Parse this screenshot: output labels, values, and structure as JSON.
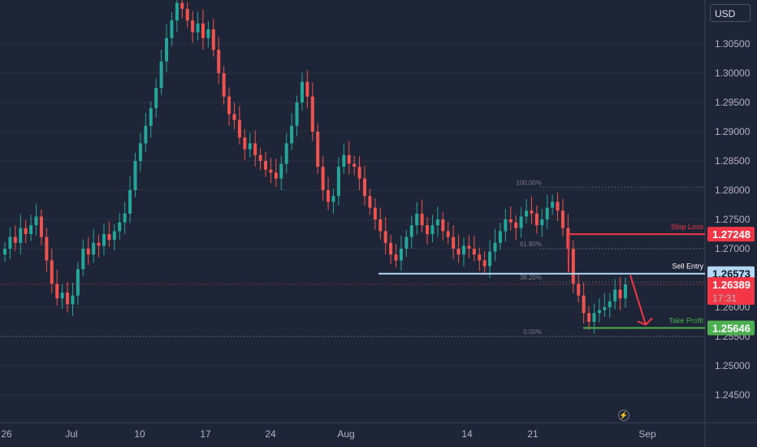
{
  "instrument": {
    "currency": "USD"
  },
  "colors": {
    "up": "#26a69a",
    "down": "#ef5350",
    "background": "#1e2536",
    "stop_loss": "#f23645",
    "sell_entry": "#b2d8f5",
    "take_profit": "#4caf50",
    "current_price": "#f23645",
    "fib": "#787b86",
    "arrow": "#f23645"
  },
  "chart_data": {
    "type": "candlestick",
    "title": "",
    "x_ticks": [
      "26",
      "Jul",
      "10",
      "17",
      "24",
      "Aug",
      "14",
      "21",
      "Sep"
    ],
    "y_ticks": [
      "1.30500",
      "1.30000",
      "1.29500",
      "1.29000",
      "1.28500",
      "1.28000",
      "1.27500",
      "1.27000",
      "1.26000",
      "1.25500",
      "1.25000",
      "1.24500"
    ],
    "ylim": [
      1.241,
      1.3105
    ],
    "grid": true,
    "close_series": [
      1.27,
      1.272,
      1.271,
      1.2735,
      1.2725,
      1.274,
      1.2755,
      1.272,
      1.268,
      1.264,
      1.2615,
      1.2625,
      1.2605,
      1.262,
      1.2665,
      1.27,
      1.269,
      1.271,
      1.2705,
      1.2725,
      1.2715,
      1.273,
      1.2745,
      1.276,
      1.28,
      1.285,
      1.288,
      1.291,
      1.294,
      1.2975,
      1.302,
      1.306,
      1.309,
      1.312,
      1.311,
      1.309,
      1.307,
      1.3085,
      1.306,
      1.3075,
      1.304,
      1.3,
      1.296,
      1.293,
      1.292,
      1.289,
      1.287,
      1.288,
      1.286,
      1.285,
      1.2835,
      1.283,
      1.282,
      1.2845,
      1.288,
      1.291,
      1.295,
      1.2985,
      1.296,
      1.29,
      1.284,
      1.28,
      1.278,
      1.279,
      1.284,
      1.286,
      1.2845,
      1.284,
      1.282,
      1.279,
      1.277,
      1.275,
      1.273,
      1.271,
      1.269,
      1.268,
      1.27,
      1.272,
      1.274,
      1.276,
      1.274,
      1.2725,
      1.274,
      1.275,
      1.273,
      1.272,
      1.27,
      1.269,
      1.2705,
      1.27,
      1.269,
      1.268,
      1.267,
      1.2695,
      1.271,
      1.273,
      1.275,
      1.2745,
      1.2735,
      1.2755,
      1.2765,
      1.276,
      1.274,
      1.275,
      1.277,
      1.278,
      1.2765,
      1.2735,
      1.27,
      1.264,
      1.262,
      1.259,
      1.2575,
      1.259,
      1.2595,
      1.26,
      1.261,
      1.263,
      1.2615,
      1.2639
    ],
    "annotations": {
      "stop_loss": {
        "label": "Stop Loss",
        "price": 1.27248,
        "price_label": "1.27248"
      },
      "sell_entry": {
        "label": "Sell Entry",
        "price": 1.26573,
        "price_label": "1.26573"
      },
      "take_profit": {
        "label": "Take Profit",
        "price": 1.25646,
        "price_label": "1.25646"
      },
      "current_price": {
        "price": 1.26389,
        "price_label": "1.26389",
        "countdown": "17:31"
      },
      "fibonacci": [
        {
          "label": "100.00%",
          "price": 1.2805
        },
        {
          "label": "61.80%",
          "price": 1.27
        },
        {
          "label": "38.20%",
          "price": 1.2643
        },
        {
          "label": "0.00%",
          "price": 1.255
        }
      ]
    }
  },
  "footer": {
    "icon": "lightning-icon"
  }
}
